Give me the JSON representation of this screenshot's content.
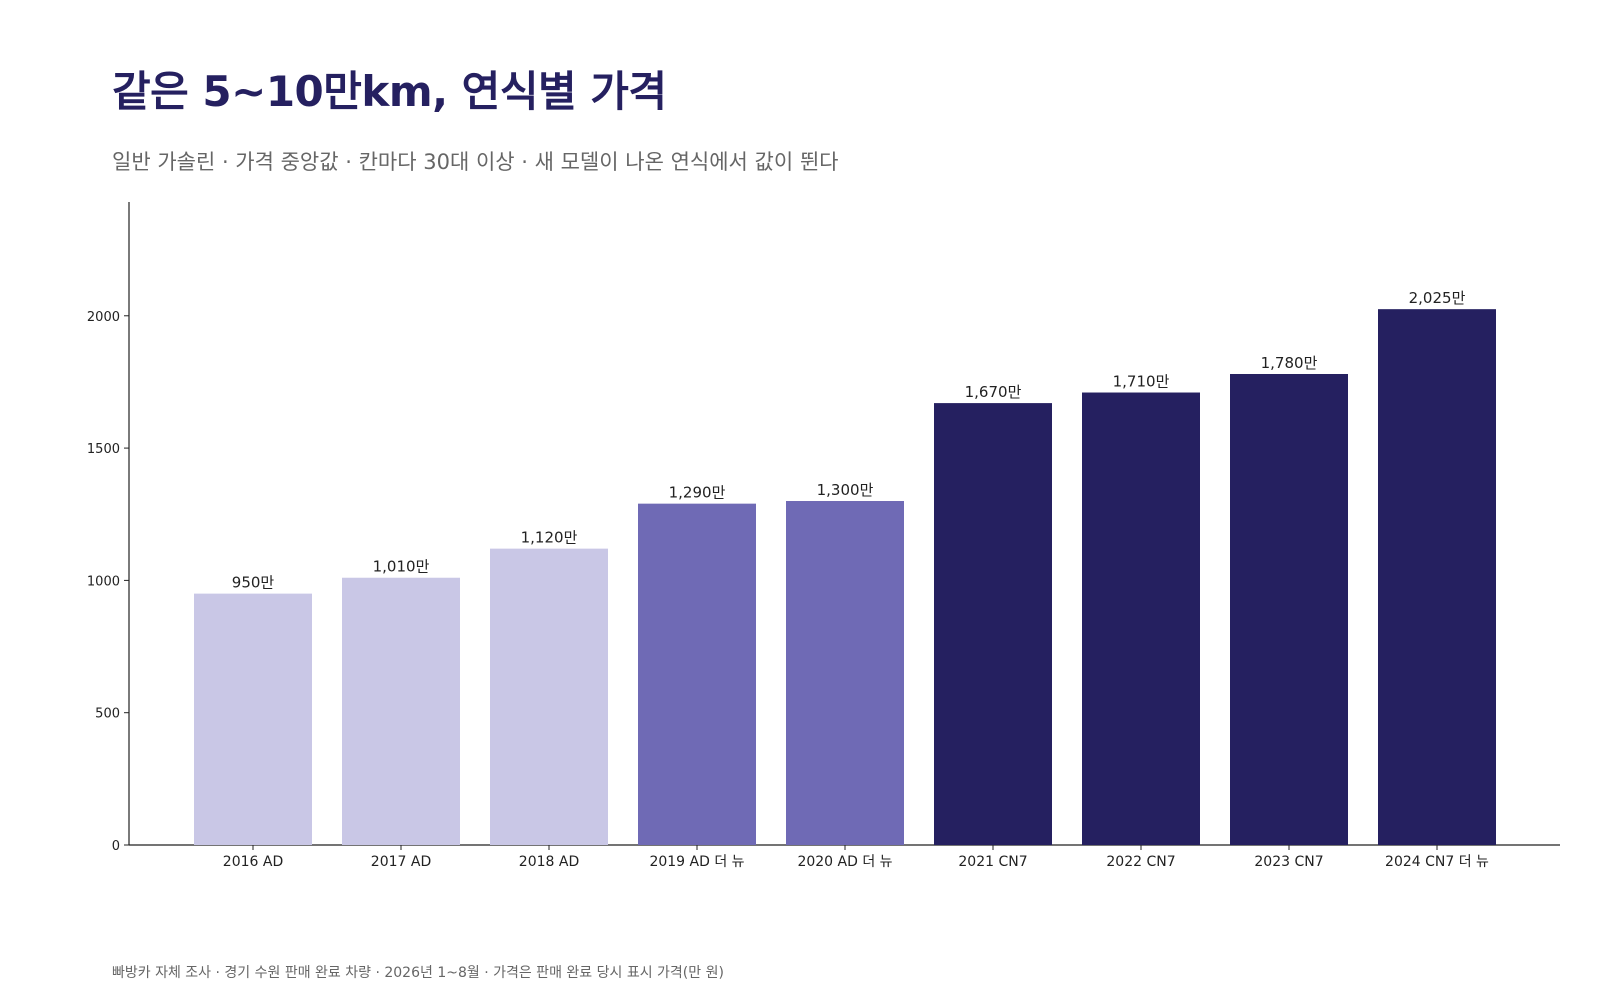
{
  "header": {
    "title": "같은 5~10만km, 연식별 가격",
    "subtitle": "일반 가솔린 · 가격 중앙값 · 칸마다 30대 이상 · 새 모델이 나온 연식에서 값이 뛴다"
  },
  "footer": {
    "note": "빠방카 자체 조사 · 경기 수원 판매 완료 차량 · 2026년 1~8월 · 가격은 판매 완료 당시 표시 가격(만 원)"
  },
  "chart_data": {
    "type": "bar",
    "title": "같은 5~10만km, 연식별 가격",
    "subtitle": "일반 가솔린 · 가격 중앙값 · 칸마다 30대 이상 · 새 모델이 나온 연식에서 값이 뛴다",
    "xlabel": "",
    "ylabel": "",
    "categories": [
      "2016 AD",
      "2017 AD",
      "2018 AD",
      "2019 AD 더 뉴",
      "2020 AD 더 뉴",
      "2021 CN7",
      "2022 CN7",
      "2023 CN7",
      "2024 CN7 더 뉴"
    ],
    "values": [
      950,
      1010,
      1120,
      1290,
      1300,
      1670,
      1710,
      1780,
      2025
    ],
    "value_labels": [
      "950만",
      "1,010만",
      "1,120만",
      "1,290만",
      "1,300만",
      "1,670만",
      "1,710만",
      "1,780만",
      "2,025만"
    ],
    "bar_colors": [
      "#c9c7e6",
      "#c9c7e6",
      "#c9c7e6",
      "#6f6ab5",
      "#6f6ab5",
      "#252060",
      "#252060",
      "#252060",
      "#252060"
    ],
    "ylim": [
      0,
      2430
    ],
    "yticks": [
      0,
      500,
      1000,
      1500,
      2000
    ],
    "grid": false,
    "legend": "none"
  }
}
